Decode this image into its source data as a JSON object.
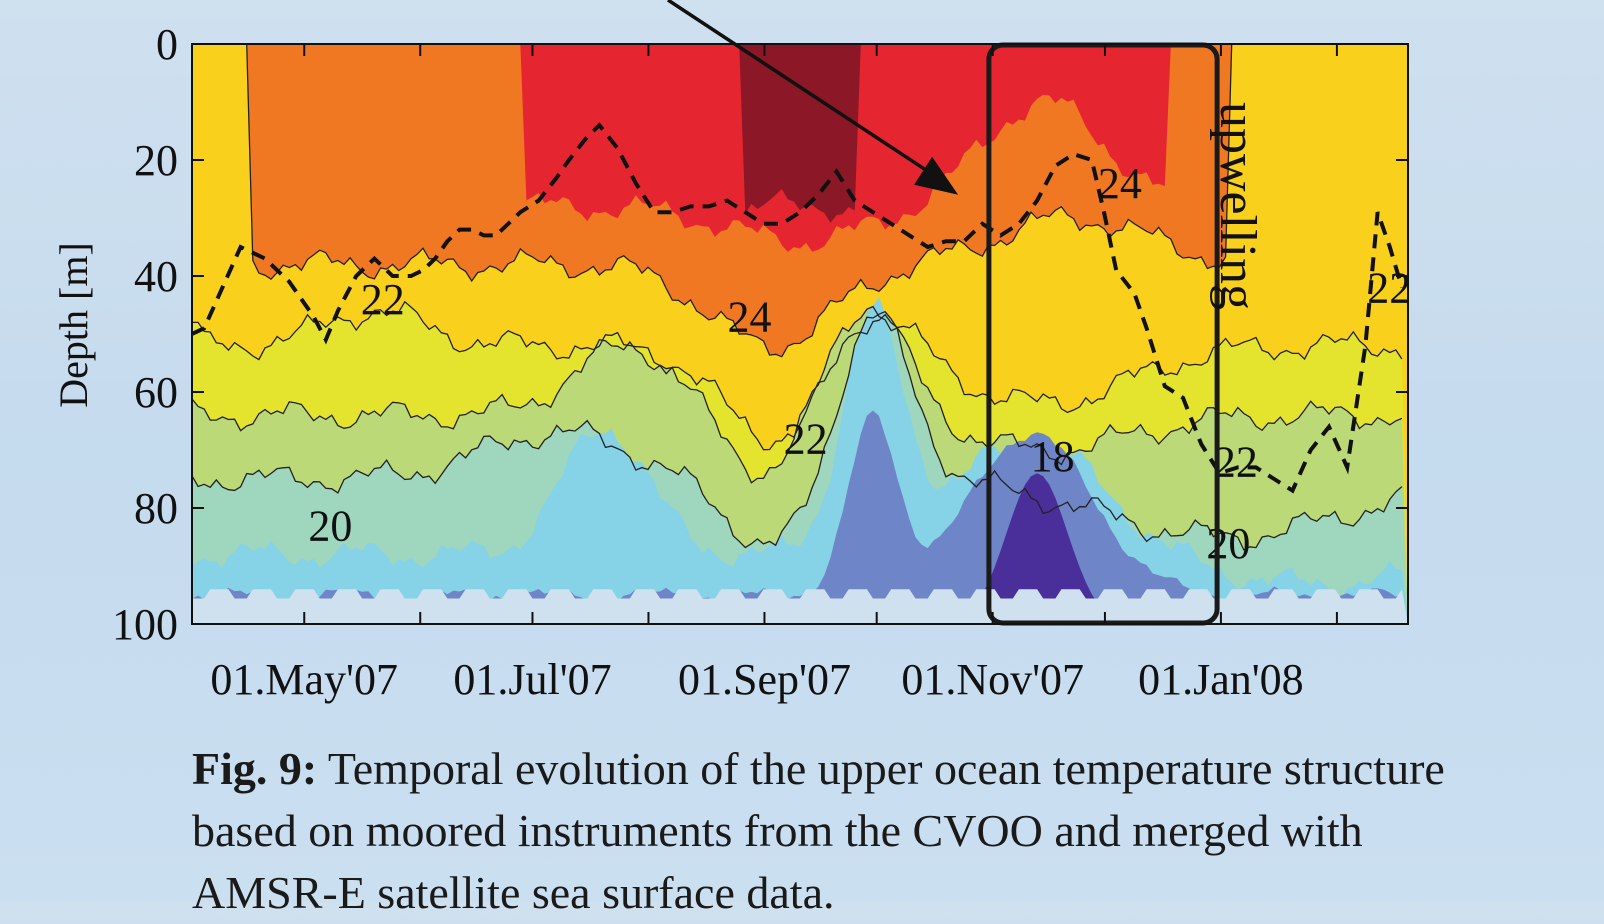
{
  "chart_data": {
    "type": "heatmap",
    "title": "",
    "xlabel": "",
    "ylabel": "Depth [m]",
    "x_range": [
      "2007-04-01",
      "2008-02-20"
    ],
    "ylim": [
      0,
      100
    ],
    "y_inverted": true,
    "grid": false,
    "x_ticks": [
      "01.May'07",
      "01.Jul'07",
      "01.Sep'07",
      "01.Nov'07",
      "01.Jan'08"
    ],
    "y_ticks": [
      0,
      20,
      40,
      60,
      80,
      100
    ],
    "contour_levels": [
      "18",
      "20",
      "22",
      "24"
    ],
    "contour_labels": [
      {
        "text": "22",
        "date": "2007-05-22",
        "depth": 44
      },
      {
        "text": "20",
        "date": "2007-05-08",
        "depth": 83
      },
      {
        "text": "24",
        "date": "2007-08-28",
        "depth": 47
      },
      {
        "text": "22",
        "date": "2007-09-12",
        "depth": 68
      },
      {
        "text": "18",
        "date": "2007-11-17",
        "depth": 71
      },
      {
        "text": "24",
        "date": "2007-12-05",
        "depth": 24
      },
      {
        "text": "22",
        "date": "2008-01-05",
        "depth": 72
      },
      {
        "text": "20",
        "date": "2008-01-03",
        "depth": 86
      },
      {
        "text": "22",
        "date": "2008-02-15",
        "depth": 42
      }
    ],
    "annotation": {
      "text": "upwelling",
      "start": "2007-10-31",
      "end": "2007-12-31"
    },
    "mixed_layer_depth": {
      "style": "dashed",
      "points": [
        [
          0,
          50
        ],
        [
          2,
          49
        ],
        [
          5,
          42
        ],
        [
          8,
          35
        ],
        [
          12,
          37
        ],
        [
          16,
          41
        ],
        [
          18,
          44
        ],
        [
          20,
          47
        ],
        [
          22,
          51
        ],
        [
          24,
          46
        ],
        [
          27,
          40
        ],
        [
          30,
          37
        ],
        [
          33,
          40
        ],
        [
          36,
          40
        ],
        [
          38,
          39
        ],
        [
          40,
          37
        ],
        [
          42,
          34
        ],
        [
          44,
          32
        ],
        [
          46,
          32
        ],
        [
          48,
          33
        ],
        [
          50,
          33
        ],
        [
          52,
          31
        ],
        [
          54,
          29
        ],
        [
          57,
          27
        ],
        [
          60,
          23
        ],
        [
          62,
          20
        ],
        [
          65,
          16
        ],
        [
          67,
          14
        ],
        [
          70,
          18
        ],
        [
          73,
          24
        ],
        [
          76,
          29
        ],
        [
          79,
          29
        ],
        [
          82,
          28
        ],
        [
          85,
          28
        ],
        [
          88,
          27
        ],
        [
          91,
          29
        ],
        [
          94,
          31
        ],
        [
          97,
          31
        ],
        [
          100,
          29
        ],
        [
          103,
          26
        ],
        [
          106,
          22
        ],
        [
          109,
          27
        ],
        [
          112,
          29
        ],
        [
          115,
          31
        ],
        [
          118,
          33
        ],
        [
          121,
          35
        ],
        [
          124,
          34
        ],
        [
          127,
          34
        ],
        [
          130,
          31
        ],
        [
          133,
          33
        ],
        [
          136,
          31
        ],
        [
          139,
          27
        ],
        [
          142,
          21
        ],
        [
          145,
          19
        ],
        [
          148,
          20
        ],
        [
          150,
          29
        ],
        [
          152,
          39
        ],
        [
          155,
          43
        ],
        [
          157,
          49
        ],
        [
          160,
          59
        ],
        [
          163,
          61
        ],
        [
          166,
          69
        ],
        [
          169,
          74
        ],
        [
          172,
          73
        ],
        [
          175,
          73
        ],
        [
          178,
          75
        ],
        [
          181,
          77
        ],
        [
          184,
          70
        ],
        [
          187,
          66
        ],
        [
          190,
          73
        ],
        [
          193,
          52
        ],
        [
          195,
          29
        ],
        [
          197,
          35
        ],
        [
          199,
          42
        ]
      ]
    }
  },
  "caption": {
    "label": "Fig. 9:",
    "text": " Temporal evolution of the upper ocean temperature structure based on moored instruments from the CVOO and merged with AMSR-E satellite sea surface data."
  },
  "colors": {
    "lt18": "#4a2e99",
    "c18": "#6e85c8",
    "c19": "#86d2e6",
    "c20": "#9fd6be",
    "c21": "#bcd977",
    "c22": "#e4e42e",
    "c23": "#f9d01b",
    "c24": "#f17822",
    "c25": "#e52630",
    "c26": "#8b1727",
    "below_data": "#cfe0ef"
  }
}
